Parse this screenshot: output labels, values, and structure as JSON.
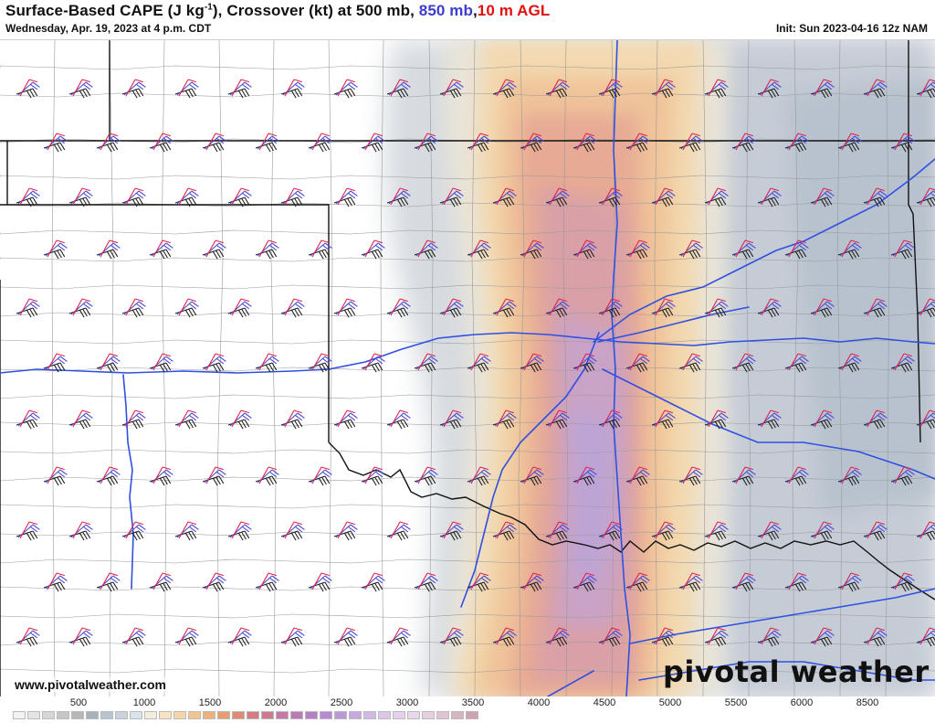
{
  "header": {
    "title_a": "Surface-Based CAPE (J kg",
    "title_sup": "-1",
    "title_b": "), Crossover (kt) at 500 mb, ",
    "title_850": "850 mb",
    "title_sep": ",",
    "title_10m": "10 m AGL",
    "subtitle": "Wednesday, Apr. 19, 2023 at 4 p.m. CDT",
    "init": "Init: Sun 2023-04-16 12z NAM"
  },
  "footer": {
    "url": "www.pivotalweather.com",
    "logo": "pivotal weather"
  },
  "colors": {
    "title_850": "#3c3cd0",
    "title_10m": "#e01010",
    "barb_500": "#222222",
    "barb_850": "#4b4bd6",
    "barb_10m": "#e0224a",
    "highway": "#3050e0",
    "border": "#111111",
    "county": "#9a9a9a"
  },
  "colorbar": {
    "labels": [
      "500",
      "1000",
      "1500",
      "2000",
      "2500",
      "3000",
      "3500",
      "4000",
      "4500",
      "5000",
      "5500",
      "6000",
      "8500"
    ],
    "swatches": [
      "#f2f2f2",
      "#e4e4e4",
      "#d6d6d6",
      "#c6c6c6",
      "#b6b6b6",
      "#a7b2bf",
      "#b7c3cf",
      "#c8d3de",
      "#d9e3eb",
      "#f2eddc",
      "#f6e2c0",
      "#f5d6a6",
      "#f2c48f",
      "#eeb17c",
      "#e89c72",
      "#e08a74",
      "#d57c7e",
      "#cc7a90",
      "#c47aa4",
      "#bb7ab6",
      "#b57fc4",
      "#b58ad0",
      "#bc98d8",
      "#c6a8e0",
      "#d2b8e6",
      "#dcc6ea",
      "#e4d0ec",
      "#e8d6ea",
      "#e6d0e0",
      "#e0c4d2",
      "#d8b4c0",
      "#cfa3ae"
    ]
  },
  "map": {
    "description_level": "CAPE shading with Crossover wind barbs at 500 mb, 850 mb and 10 m AGL"
  }
}
